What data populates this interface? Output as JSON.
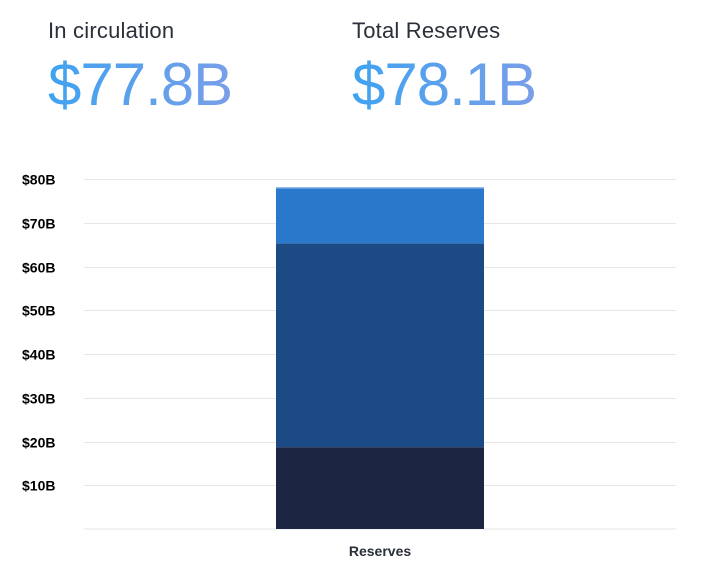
{
  "stats": {
    "circulation": {
      "label": "In circulation",
      "value": "$77.8B"
    },
    "reserves": {
      "label": "Total Reserves",
      "value": "$78.1B"
    }
  },
  "colors": {
    "value_gradient_start": "#3fa3f0",
    "value_gradient_end": "#7a9ee8",
    "grid": "#e6e6e6"
  },
  "chart_data": {
    "type": "bar",
    "stacked": true,
    "categories": [
      "Reserves"
    ],
    "series": [
      {
        "values": [
          18.7
        ],
        "color": "#1c2541"
      },
      {
        "values": [
          46.6
        ],
        "color": "#1c4a85"
      },
      {
        "values": [
          12.5
        ],
        "color": "#2a78cc"
      },
      {
        "values": [
          0.3
        ],
        "color": "#5f9ee0"
      }
    ],
    "ylim": [
      0,
      80
    ],
    "yticks": [
      10,
      20,
      30,
      40,
      50,
      60,
      70,
      80
    ],
    "ytick_labels": [
      "$10B",
      "$20B",
      "$30B",
      "$40B",
      "$50B",
      "$60B",
      "$70B",
      "$80B"
    ],
    "grid": true,
    "legend": false
  }
}
